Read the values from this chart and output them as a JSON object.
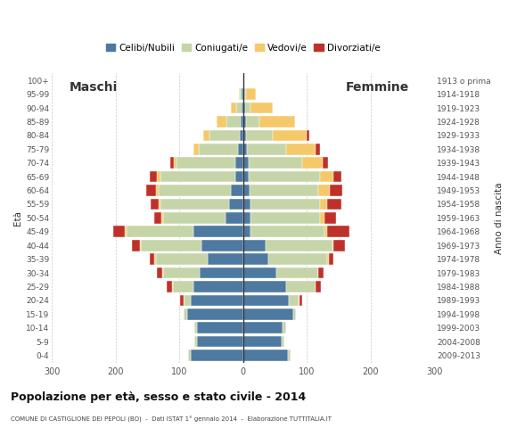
{
  "age_groups": [
    "0-4",
    "5-9",
    "10-14",
    "15-19",
    "20-24",
    "25-29",
    "30-34",
    "35-39",
    "40-44",
    "45-49",
    "50-54",
    "55-59",
    "60-64",
    "65-69",
    "70-74",
    "75-79",
    "80-84",
    "85-89",
    "90-94",
    "95-99",
    "100+"
  ],
  "birth_years": [
    "2009-2013",
    "2004-2008",
    "1999-2003",
    "1994-1998",
    "1989-1993",
    "1984-1988",
    "1979-1983",
    "1974-1978",
    "1969-1973",
    "1964-1968",
    "1959-1963",
    "1954-1958",
    "1949-1953",
    "1944-1948",
    "1939-1943",
    "1934-1938",
    "1929-1933",
    "1924-1928",
    "1919-1923",
    "1914-1918",
    "1913 o prima"
  ],
  "colors": {
    "celibe": "#4e79a0",
    "coniugato": "#c5d5a8",
    "vedovo": "#f5c96a",
    "divorziato": "#c0302a"
  },
  "maschi": {
    "celibe": [
      82,
      72,
      72,
      88,
      82,
      78,
      68,
      55,
      65,
      78,
      28,
      22,
      20,
      12,
      12,
      8,
      5,
      4,
      3,
      2,
      0
    ],
    "coniugato": [
      5,
      5,
      5,
      5,
      12,
      32,
      58,
      82,
      95,
      105,
      98,
      108,
      112,
      118,
      92,
      62,
      48,
      22,
      8,
      3,
      0
    ],
    "vedovo": [
      0,
      0,
      0,
      0,
      0,
      2,
      1,
      2,
      2,
      3,
      3,
      3,
      5,
      5,
      5,
      8,
      10,
      15,
      8,
      2,
      0
    ],
    "divorziato": [
      0,
      0,
      0,
      0,
      5,
      8,
      8,
      8,
      12,
      18,
      10,
      12,
      15,
      12,
      5,
      0,
      0,
      0,
      0,
      0,
      0
    ]
  },
  "femmine": {
    "celibe": [
      70,
      60,
      62,
      78,
      72,
      68,
      52,
      40,
      35,
      12,
      12,
      12,
      10,
      8,
      8,
      6,
      5,
      4,
      3,
      2,
      0
    ],
    "coniugato": [
      5,
      5,
      5,
      5,
      15,
      45,
      65,
      92,
      105,
      115,
      108,
      108,
      108,
      112,
      85,
      62,
      42,
      22,
      8,
      3,
      0
    ],
    "vedovo": [
      0,
      0,
      0,
      0,
      1,
      1,
      1,
      2,
      2,
      5,
      8,
      12,
      18,
      22,
      32,
      45,
      52,
      55,
      35,
      15,
      2
    ],
    "divorziato": [
      0,
      0,
      0,
      0,
      5,
      8,
      8,
      8,
      18,
      35,
      18,
      22,
      20,
      12,
      8,
      8,
      5,
      0,
      0,
      0,
      0
    ]
  },
  "xlim": 300,
  "title": "Popolazione per età, sesso e stato civile - 2014",
  "subtitle": "COMUNE DI CASTIGLIONE DEI PEPOLI (BO)  -  Dati ISTAT 1° gennaio 2014  -  Elaborazione TUTTITALIA.IT",
  "ylabel_left": "Età",
  "ylabel_right": "Anno di nascita",
  "label_maschi": "Maschi",
  "label_femmine": "Femmine",
  "legend_labels": [
    "Celibi/Nubili",
    "Coniugati/e",
    "Vedovi/e",
    "Divorziati/e"
  ],
  "xticks": [
    -300,
    -200,
    -100,
    0,
    100,
    200,
    300
  ],
  "grid_color": "#bbbbbb",
  "bg_color": "#ffffff"
}
